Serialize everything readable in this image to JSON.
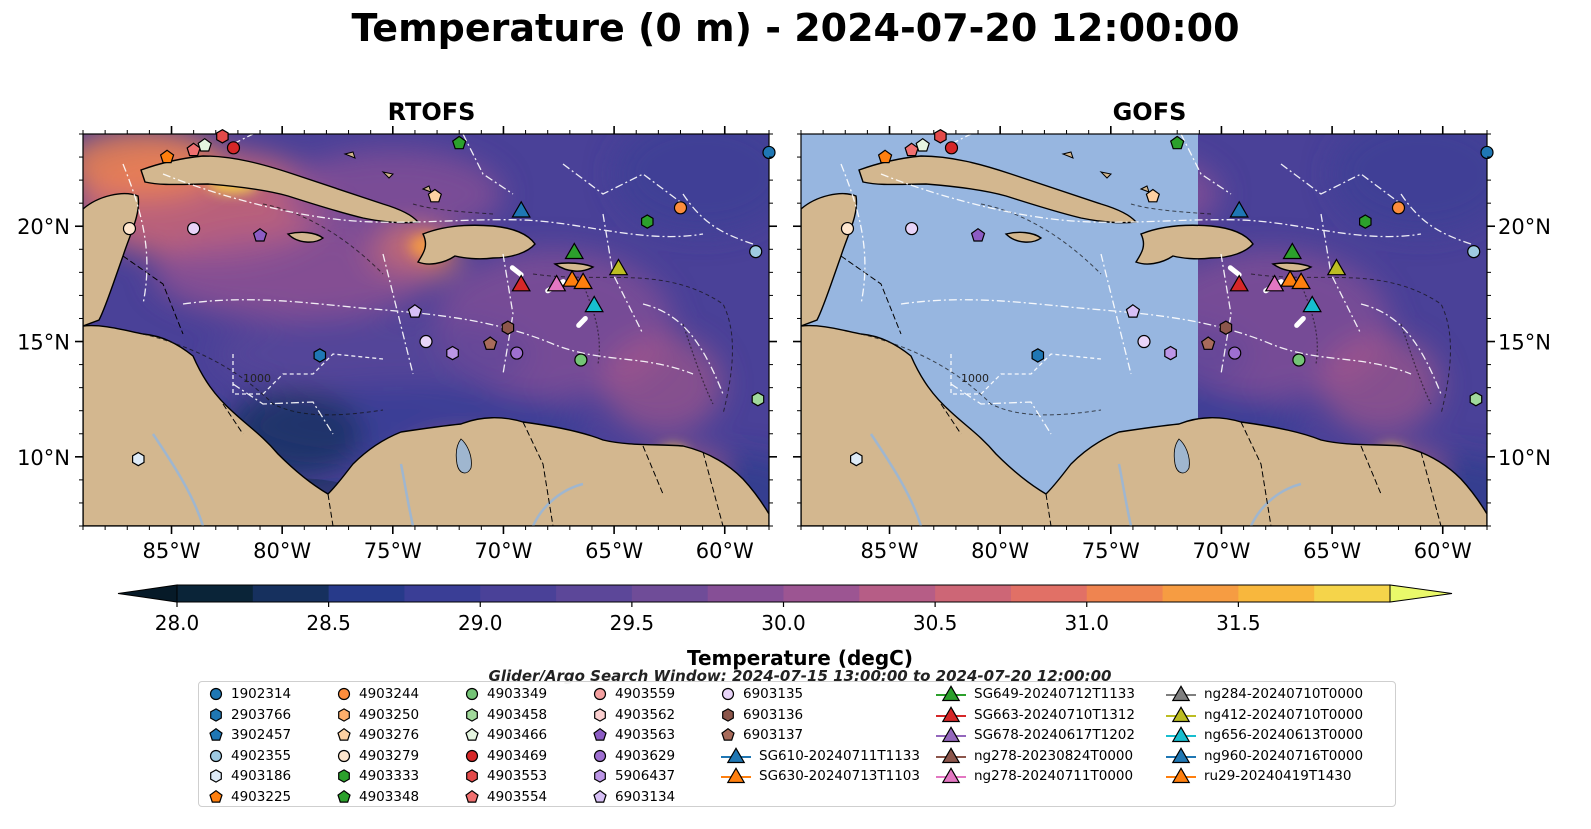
{
  "title": "Temperature (0 m) - 2024-07-20 12:00:00",
  "panels": [
    {
      "title": "RTOFS",
      "model_coverage": "full"
    },
    {
      "title": "GOFS",
      "model_coverage": "east of 71°W only"
    }
  ],
  "map": {
    "lon_range": [
      -89,
      -58
    ],
    "lat_range": [
      7,
      24
    ],
    "lon_tick_labels": [
      "85°W",
      "80°W",
      "75°W",
      "70°W",
      "65°W",
      "60°W"
    ],
    "lat_tick_labels": [
      "20°N",
      "15°N",
      "10°N"
    ],
    "contour_label": "1000",
    "colors": {
      "land": "#d3b78f",
      "no_data": "#97b6e0",
      "rivers": "#9fb6cf"
    }
  },
  "colorbar": {
    "label": "Temperature (degC)",
    "min": 28.0,
    "max": 31.5,
    "step": 0.25,
    "tick_labels": [
      "28.0",
      "28.5",
      "29.0",
      "29.5",
      "30.0",
      "30.5",
      "31.0",
      "31.5"
    ],
    "colors": [
      "#0a2438",
      "#16305e",
      "#273a8a",
      "#3a3e96",
      "#4a4198",
      "#5c4799",
      "#6f4c98",
      "#864f96",
      "#9c5592",
      "#b65d86",
      "#cd6676",
      "#e17066",
      "#ef8450",
      "#f69c42",
      "#f8b73d",
      "#f5d44a"
    ],
    "under_color": "#061a28",
    "over_color": "#eaf96a"
  },
  "search_window": "Glider/Argo Search Window: 2024-07-15 13:00:00 to 2024-07-20 12:00:00",
  "legend": {
    "columns": [
      [
        {
          "label": "1902314",
          "marker": "circle",
          "color": "#1f77b4"
        },
        {
          "label": "2903766",
          "marker": "hexagon",
          "color": "#1f77b4"
        },
        {
          "label": "3902457",
          "marker": "pentagon",
          "color": "#1f77b4"
        },
        {
          "label": "4902355",
          "marker": "circle",
          "color": "#9ecae1"
        },
        {
          "label": "4903186",
          "marker": "hexagon",
          "color": "#deebf7"
        },
        {
          "label": "4903225",
          "marker": "pentagon",
          "color": "#ff7f0e"
        }
      ],
      [
        {
          "label": "4903244",
          "marker": "circle",
          "color": "#fd8d3c"
        },
        {
          "label": "4903250",
          "marker": "hexagon",
          "color": "#fdae6b"
        },
        {
          "label": "4903276",
          "marker": "pentagon",
          "color": "#fdd0a2"
        },
        {
          "label": "4903279",
          "marker": "circle",
          "color": "#fee6ce"
        },
        {
          "label": "4903333",
          "marker": "hexagon",
          "color": "#2ca02c"
        },
        {
          "label": "4903348",
          "marker": "pentagon",
          "color": "#2ca02c"
        }
      ],
      [
        {
          "label": "4903349",
          "marker": "circle",
          "color": "#74c476"
        },
        {
          "label": "4903458",
          "marker": "hexagon",
          "color": "#a1d99b"
        },
        {
          "label": "4903466",
          "marker": "pentagon",
          "color": "#e5f5e0"
        },
        {
          "label": "4903469",
          "marker": "circle",
          "color": "#d62728"
        },
        {
          "label": "4903553",
          "marker": "hexagon",
          "color": "#e34a4a"
        },
        {
          "label": "4903554",
          "marker": "pentagon",
          "color": "#f07070"
        }
      ],
      [
        {
          "label": "4903559",
          "marker": "circle",
          "color": "#f4a0a0"
        },
        {
          "label": "4903562",
          "marker": "hexagon",
          "color": "#fcd0d0"
        },
        {
          "label": "4903563",
          "marker": "pentagon",
          "color": "#8c5cc4"
        },
        {
          "label": "4903629",
          "marker": "circle",
          "color": "#9e6fd0"
        },
        {
          "label": "5906437",
          "marker": "hexagon",
          "color": "#bc96e6"
        },
        {
          "label": "6903134",
          "marker": "pentagon",
          "color": "#d6bff5"
        }
      ],
      [
        {
          "label": "6903135",
          "marker": "circle",
          "color": "#e8d4f8"
        },
        {
          "label": "6903136",
          "marker": "hexagon",
          "color": "#8c564b"
        },
        {
          "label": "6903137",
          "marker": "pentagon",
          "color": "#a86b5b"
        },
        {
          "label": "SG610-20240711T1133",
          "marker": "triangle-line",
          "color": "#1f77b4"
        },
        {
          "label": "SG630-20240713T1103",
          "marker": "triangle-line",
          "color": "#ff7f0e"
        }
      ],
      [
        {
          "label": "SG649-20240712T1133",
          "marker": "triangle-line",
          "color": "#2ca02c"
        },
        {
          "label": "SG663-20240710T1312",
          "marker": "triangle-line",
          "color": "#d62728"
        },
        {
          "label": "SG678-20240617T1202",
          "marker": "triangle-line",
          "color": "#9467bd"
        },
        {
          "label": "ng278-20230824T0000",
          "marker": "triangle-line",
          "color": "#8c564b"
        },
        {
          "label": "ng278-20240711T0000",
          "marker": "triangle-line",
          "color": "#e377c2"
        }
      ],
      [
        {
          "label": "ng284-20240710T0000",
          "marker": "triangle-line",
          "color": "#7f7f7f"
        },
        {
          "label": "ng412-20240710T0000",
          "marker": "triangle-line",
          "color": "#bcbd22"
        },
        {
          "label": "ng656-20240613T0000",
          "marker": "triangle-line",
          "color": "#17becf"
        },
        {
          "label": "ng960-20240716T0000",
          "marker": "triangle-line",
          "color": "#1f77b4"
        },
        {
          "label": "ru29-20240419T1430",
          "marker": "triangle-line",
          "color": "#ff7f0e"
        }
      ]
    ]
  },
  "observations": [
    {
      "id": "4903225",
      "lon": -85.2,
      "lat": 23.0
    },
    {
      "id": "4903554",
      "lon": -84.0,
      "lat": 23.3
    },
    {
      "id": "4903466",
      "lon": -83.5,
      "lat": 23.5
    },
    {
      "id": "4903553",
      "lon": -82.7,
      "lat": 23.9
    },
    {
      "id": "4903469",
      "lon": -82.2,
      "lat": 23.4
    },
    {
      "id": "4903348",
      "lon": -72.0,
      "lat": 23.6
    },
    {
      "id": "4903276",
      "lon": -73.1,
      "lat": 21.3
    },
    {
      "id": "4903279",
      "lon": -86.9,
      "lat": 19.9
    },
    {
      "id": "6903135",
      "lon": -84.0,
      "lat": 19.9
    },
    {
      "id": "4903563",
      "lon": -81.0,
      "lat": 19.6
    },
    {
      "id": "4903244",
      "lon": -62.0,
      "lat": 20.8
    },
    {
      "id": "4903333",
      "lon": -63.5,
      "lat": 20.2
    },
    {
      "id": "4902355",
      "lon": -58.6,
      "lat": 18.9
    },
    {
      "id": "1902314",
      "lon": -58.0,
      "lat": 23.2
    },
    {
      "id": "6903134",
      "lon": -74.0,
      "lat": 16.3
    },
    {
      "id": "6903135",
      "lon": -73.5,
      "lat": 15.0
    },
    {
      "id": "5906437",
      "lon": -72.3,
      "lat": 14.5
    },
    {
      "id": "6903136",
      "lon": -69.8,
      "lat": 15.6
    },
    {
      "id": "6903137",
      "lon": -70.6,
      "lat": 14.9
    },
    {
      "id": "4903629",
      "lon": -69.4,
      "lat": 14.5
    },
    {
      "id": "4903349",
      "lon": -66.5,
      "lat": 14.2
    },
    {
      "id": "2903766",
      "lon": -78.3,
      "lat": 14.4
    },
    {
      "id": "4903186",
      "lon": -86.5,
      "lat": 9.9
    },
    {
      "id": "4903458",
      "lon": -58.5,
      "lat": 12.5
    },
    {
      "id": "SG610-20240711T1133",
      "lon": -69.2,
      "lat": 20.7,
      "glider": true
    },
    {
      "id": "SG649-20240712T1133",
      "lon": -66.8,
      "lat": 18.9,
      "glider": true
    },
    {
      "id": "SG663-20240710T1312",
      "lon": -69.2,
      "lat": 17.5,
      "glider": true
    },
    {
      "id": "ng278-20240711T0000",
      "lon": -67.6,
      "lat": 17.5,
      "glider": true
    },
    {
      "id": "ru29-20240419T1430",
      "lon": -66.9,
      "lat": 17.7,
      "glider": true
    },
    {
      "id": "SG630-20240713T1103",
      "lon": -66.4,
      "lat": 17.6,
      "glider": true
    },
    {
      "id": "ng412-20240710T0000",
      "lon": -64.8,
      "lat": 18.2,
      "glider": true
    },
    {
      "id": "ng656-20240613T0000",
      "lon": -65.9,
      "lat": 16.6,
      "glider": true
    }
  ]
}
